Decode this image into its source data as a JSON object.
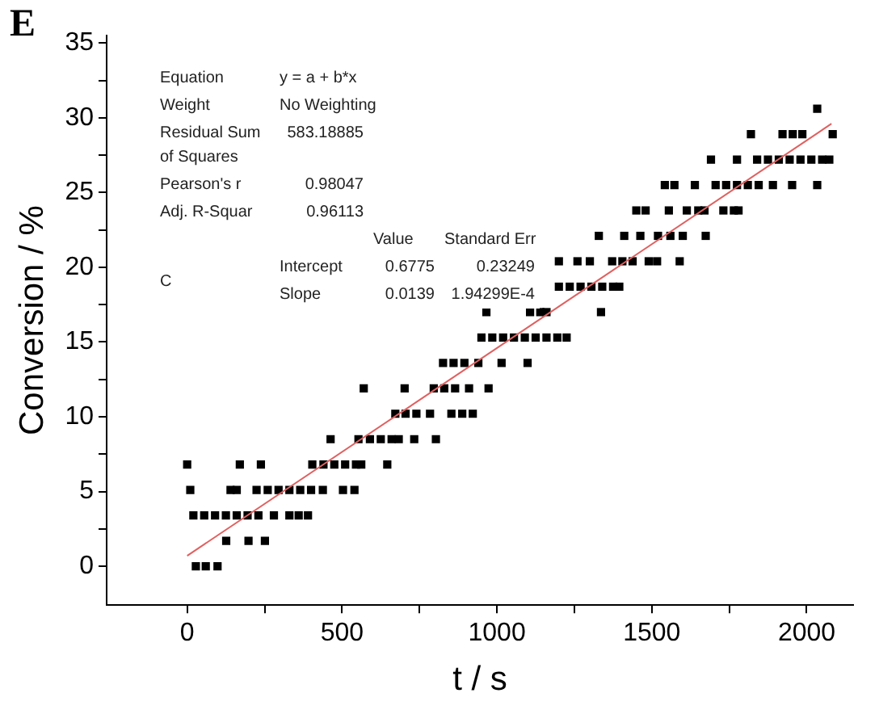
{
  "chart_data": {
    "type": "scatter",
    "title": "E",
    "xlabel": "t / s",
    "ylabel": "Conversion / %",
    "xlim": [
      -260,
      2150
    ],
    "xticks": [
      0,
      {
        "value": 250,
        "label": null
      },
      500,
      {
        "value": 750,
        "label": null
      },
      1000,
      {
        "value": 1250,
        "label": null
      },
      1500,
      {
        "value": 1750,
        "label": null
      },
      2000
    ],
    "ylim": [
      -2.6,
      35.5
    ],
    "yticks": [
      0,
      {
        "value": 2.5,
        "label": null
      },
      5,
      {
        "value": 7.5,
        "label": null
      },
      10,
      {
        "value": 12.5,
        "label": null
      },
      15,
      {
        "value": 17.5,
        "label": null
      },
      20,
      {
        "value": 22.5,
        "label": null
      },
      25,
      {
        "value": 27.5,
        "label": null
      },
      30,
      {
        "value": 32.5,
        "label": null
      },
      35
    ],
    "grid": false,
    "legend": false,
    "marker": "square",
    "series": [
      {
        "color": "#000000",
        "x": [
          28,
          60,
          98,
          126,
          198,
          251,
          20,
          55,
          90,
          125,
          160,
          195,
          230,
          280,
          330,
          360,
          390,
          10,
          140,
          160,
          224,
          260,
          295,
          330,
          365,
          400,
          438,
          503,
          540,
          0,
          170,
          238,
          404,
          440,
          475,
          510,
          545,
          562,
          646,
          463,
          553,
          590,
          625,
          660,
          683,
          733,
          803,
          672,
          705,
          740,
          784,
          853,
          888,
          922,
          570,
          702,
          796,
          830,
          865,
          910,
          973,
          826,
          860,
          895,
          940,
          1015,
          1099,
          950,
          985,
          1020,
          1055,
          1090,
          1125,
          1160,
          1195,
          1225,
          966,
          1107,
          1140,
          1160,
          1336,
          1200,
          1235,
          1270,
          1305,
          1340,
          1375,
          1395,
          1200,
          1260,
          1300,
          1372,
          1405,
          1438,
          1490,
          1517,
          1590,
          1329,
          1411,
          1463,
          1520,
          1560,
          1600,
          1674,
          1450,
          1480,
          1555,
          1613,
          1650,
          1670,
          1731,
          1765,
          1780,
          1542,
          1573,
          1639,
          1706,
          1740,
          1775,
          1810,
          1845,
          1891,
          1953,
          2034,
          1691,
          1775,
          1840,
          1875,
          1910,
          1945,
          1980,
          2015,
          2050,
          2073,
          1820,
          1922,
          1955,
          1986,
          2084,
          2034
        ],
        "values": [
          0,
          0,
          0,
          1.7,
          1.7,
          1.7,
          3.4,
          3.4,
          3.4,
          3.4,
          3.4,
          3.4,
          3.4,
          3.4,
          3.4,
          3.4,
          3.4,
          5.1,
          5.1,
          5.1,
          5.1,
          5.1,
          5.1,
          5.1,
          5.1,
          5.1,
          5.1,
          5.1,
          5.1,
          6.8,
          6.8,
          6.8,
          6.8,
          6.8,
          6.8,
          6.8,
          6.8,
          6.8,
          6.8,
          8.5,
          8.5,
          8.5,
          8.5,
          8.5,
          8.5,
          8.5,
          8.5,
          10.2,
          10.2,
          10.2,
          10.2,
          10.2,
          10.2,
          10.2,
          11.9,
          11.9,
          11.9,
          11.9,
          11.9,
          11.9,
          11.9,
          13.6,
          13.6,
          13.6,
          13.6,
          13.6,
          13.6,
          15.3,
          15.3,
          15.3,
          15.3,
          15.3,
          15.3,
          15.3,
          15.3,
          15.3,
          17,
          17,
          17,
          17,
          17,
          18.7,
          18.7,
          18.7,
          18.7,
          18.7,
          18.7,
          18.7,
          20.4,
          20.4,
          20.4,
          20.4,
          20.4,
          20.4,
          20.4,
          20.4,
          20.4,
          22.1,
          22.1,
          22.1,
          22.1,
          22.1,
          22.1,
          22.1,
          23.8,
          23.8,
          23.8,
          23.8,
          23.8,
          23.8,
          23.8,
          23.8,
          23.8,
          25.5,
          25.5,
          25.5,
          25.5,
          25.5,
          25.5,
          25.5,
          25.5,
          25.5,
          25.5,
          25.5,
          27.2,
          27.2,
          27.2,
          27.2,
          27.2,
          27.2,
          27.2,
          27.2,
          27.2,
          27.2,
          28.9,
          28.9,
          28.9,
          28.9,
          28.9,
          30.6
        ]
      },
      {
        "type": "line",
        "marker": "none",
        "color": "#e06060",
        "x": [
          0,
          2080
        ],
        "values": [
          0.7,
          29.6
        ]
      }
    ],
    "annotations": [
      "Equation",
      "y = a + b*x",
      "Weight",
      "No Weighting",
      "Residual Sum of Squares",
      "583.18885",
      "Pearson's r",
      "0.98047",
      "Adj. R-Squar",
      "0.96113",
      "Value",
      "Standard Err",
      "C",
      "Intercept",
      "0.6775",
      "0.23249",
      "Slope",
      "0.0139",
      "1.94299E-4"
    ]
  }
}
